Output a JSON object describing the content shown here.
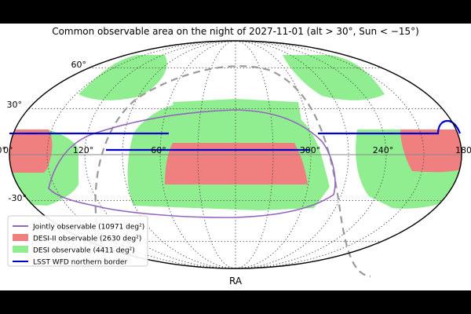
{
  "chart_data": {
    "type": "sky-map (Mollweide projection)",
    "title": "Common observable area on the night of 2027-11-01 (alt > 30°, Sun < −15°)",
    "xlabel": "RA",
    "ylabel": "",
    "x_ticks": [
      "180°",
      "240°",
      "300°",
      "60°",
      "120°",
      "0°"
    ],
    "y_ticks": [
      "60°",
      "30°",
      "0°",
      "-30°"
    ],
    "grid": true,
    "legend_position": "lower-left",
    "legend": [
      {
        "label": "Jointly observable (10971 deg²)",
        "kind": "line",
        "color": "#9467bd"
      },
      {
        "label": "DESI-II observable (2630 deg²)",
        "kind": "patch",
        "color": "#f08080"
      },
      {
        "label": "DESI observable (4411 deg²)",
        "kind": "patch",
        "color": "#90ee90"
      },
      {
        "label": "LSST WFD northern border",
        "kind": "line",
        "color": "#0000cd"
      }
    ],
    "colors": {
      "desi": "#90ee90",
      "desi2": "#f08080",
      "joint": "#9467bd",
      "lsst": "#0000cd",
      "dashed": "#999999",
      "grid": "#444444"
    },
    "series": [
      {
        "name": "LSST WFD northern border",
        "dec": 0
      }
    ]
  }
}
